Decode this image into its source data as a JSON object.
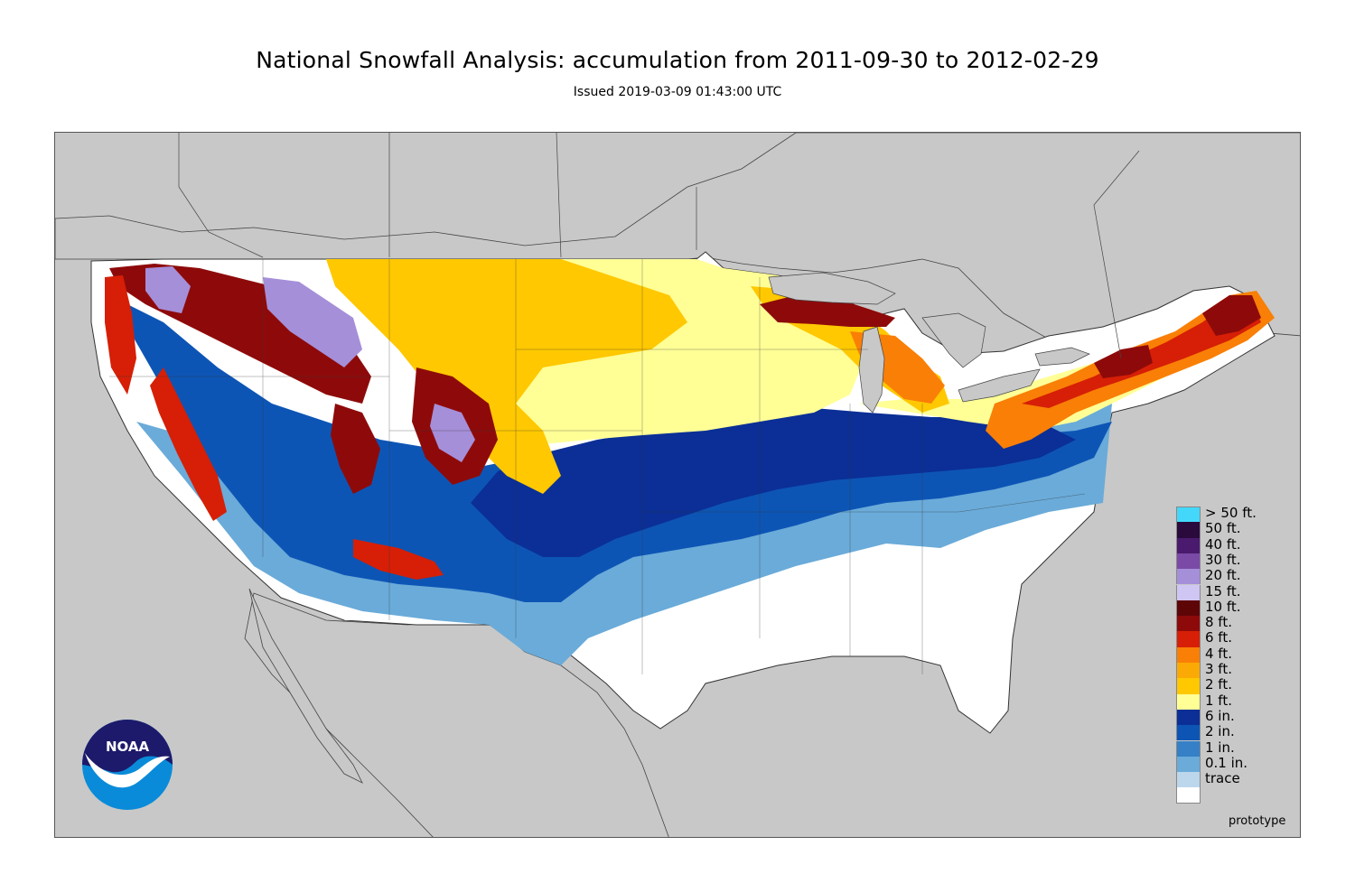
{
  "header": {
    "title": "National Snowfall Analysis: accumulation from 2011-09-30 to 2012-02-29",
    "subtitle": "Issued 2019-03-09 01:43:00 UTC"
  },
  "map": {
    "background_color": "#c8c8c8",
    "footer_label": "prototype"
  },
  "logo": {
    "text": "NOAA",
    "colors": {
      "dark": "#1d1a6b",
      "light": "#0a8bd9",
      "white": "#ffffff"
    }
  },
  "legend": {
    "items": [
      {
        "label": "> 50 ft.",
        "color": "#43d8fb"
      },
      {
        "label": "50 ft.",
        "color": "#2a0a3c"
      },
      {
        "label": "40 ft.",
        "color": "#4a1a6e"
      },
      {
        "label": "30 ft.",
        "color": "#7a4aa6"
      },
      {
        "label": "20 ft.",
        "color": "#a58fd9"
      },
      {
        "label": "15 ft.",
        "color": "#cfc6f3"
      },
      {
        "label": "10 ft.",
        "color": "#5e0508"
      },
      {
        "label": "8 ft.",
        "color": "#8e0a0a"
      },
      {
        "label": "6 ft.",
        "color": "#d61f06"
      },
      {
        "label": "4 ft.",
        "color": "#f97f06"
      },
      {
        "label": "3 ft.",
        "color": "#fbaa05"
      },
      {
        "label": "2 ft.",
        "color": "#ffc800"
      },
      {
        "label": "1 ft.",
        "color": "#ffff96"
      },
      {
        "label": "6 in.",
        "color": "#0b2f96"
      },
      {
        "label": "2 in.",
        "color": "#0d55b5"
      },
      {
        "label": "1 in.",
        "color": "#3580c6"
      },
      {
        "label": "0.1 in.",
        "color": "#6aabd9"
      },
      {
        "label": "trace",
        "color": "#bcd6ec"
      },
      {
        "label": "",
        "color": "#ffffff"
      }
    ]
  }
}
